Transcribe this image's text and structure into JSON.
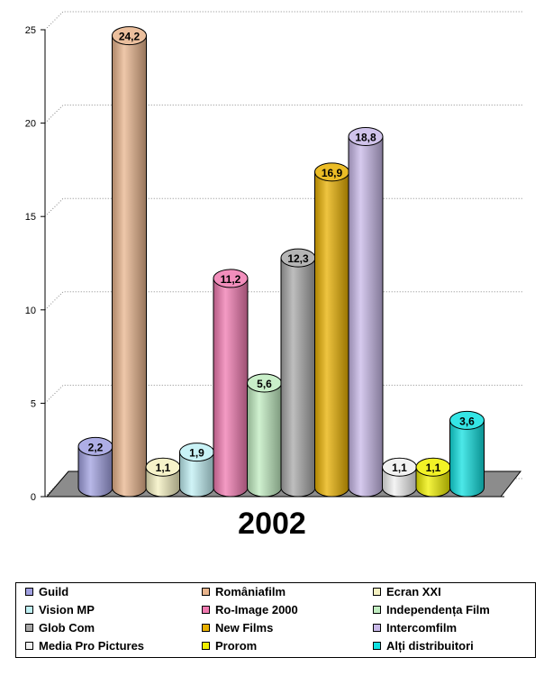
{
  "chart_data": {
    "type": "bar",
    "title": "",
    "category": "2002",
    "xlabel": "",
    "ylabel": "",
    "ylim": [
      0,
      25
    ],
    "yticks": [
      "0",
      "5",
      "10",
      "15",
      "20",
      "25"
    ],
    "grid": true,
    "legend_position": "bottom",
    "series": [
      {
        "name": "Guild",
        "value": 2.2,
        "label": "2,2",
        "color": "#a0a0e0"
      },
      {
        "name": "Româniafilm",
        "value": 24.2,
        "label": "24,2",
        "color": "#e8b48c"
      },
      {
        "name": "Ecran XXI",
        "value": 1.1,
        "label": "1,1",
        "color": "#f4f0c0"
      },
      {
        "name": "Vision MP",
        "value": 1.9,
        "label": "1,9",
        "color": "#c0f0f4"
      },
      {
        "name": "Ro-Image 2000",
        "value": 11.2,
        "label": "11,2",
        "color": "#f07ab0"
      },
      {
        "name": "Independența Film",
        "value": 5.6,
        "label": "5,6",
        "color": "#c0ecc0"
      },
      {
        "name": "Glob Com",
        "value": 12.3,
        "label": "12,3",
        "color": "#a8a8a8"
      },
      {
        "name": "New Films",
        "value": 16.9,
        "label": "16,9",
        "color": "#e8b000"
      },
      {
        "name": "Intercomfilm",
        "value": 18.8,
        "label": "18,8",
        "color": "#c8b8e8"
      },
      {
        "name": "Media Pro Pictures",
        "value": 1.1,
        "label": "1,1",
        "color": "#f0f0f0"
      },
      {
        "name": "Prorom",
        "value": 1.1,
        "label": "1,1",
        "color": "#f0f000"
      },
      {
        "name": "Alți distribuitori",
        "value": 3.6,
        "label": "3,6",
        "color": "#10e0e0"
      }
    ]
  }
}
